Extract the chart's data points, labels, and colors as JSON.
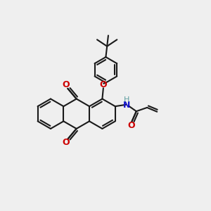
{
  "bg_color": "#efefef",
  "bond_color": "#1a1a1a",
  "oxygen_color": "#cc0000",
  "nitrogen_color": "#1414cc",
  "nh_color": "#5f9ea0",
  "line_width": 1.5,
  "dbo": 0.11,
  "figsize": [
    3.0,
    3.0
  ],
  "dpi": 100,
  "xlim": [
    0,
    10
  ],
  "ylim": [
    0,
    10
  ],
  "ring_r": 0.72
}
